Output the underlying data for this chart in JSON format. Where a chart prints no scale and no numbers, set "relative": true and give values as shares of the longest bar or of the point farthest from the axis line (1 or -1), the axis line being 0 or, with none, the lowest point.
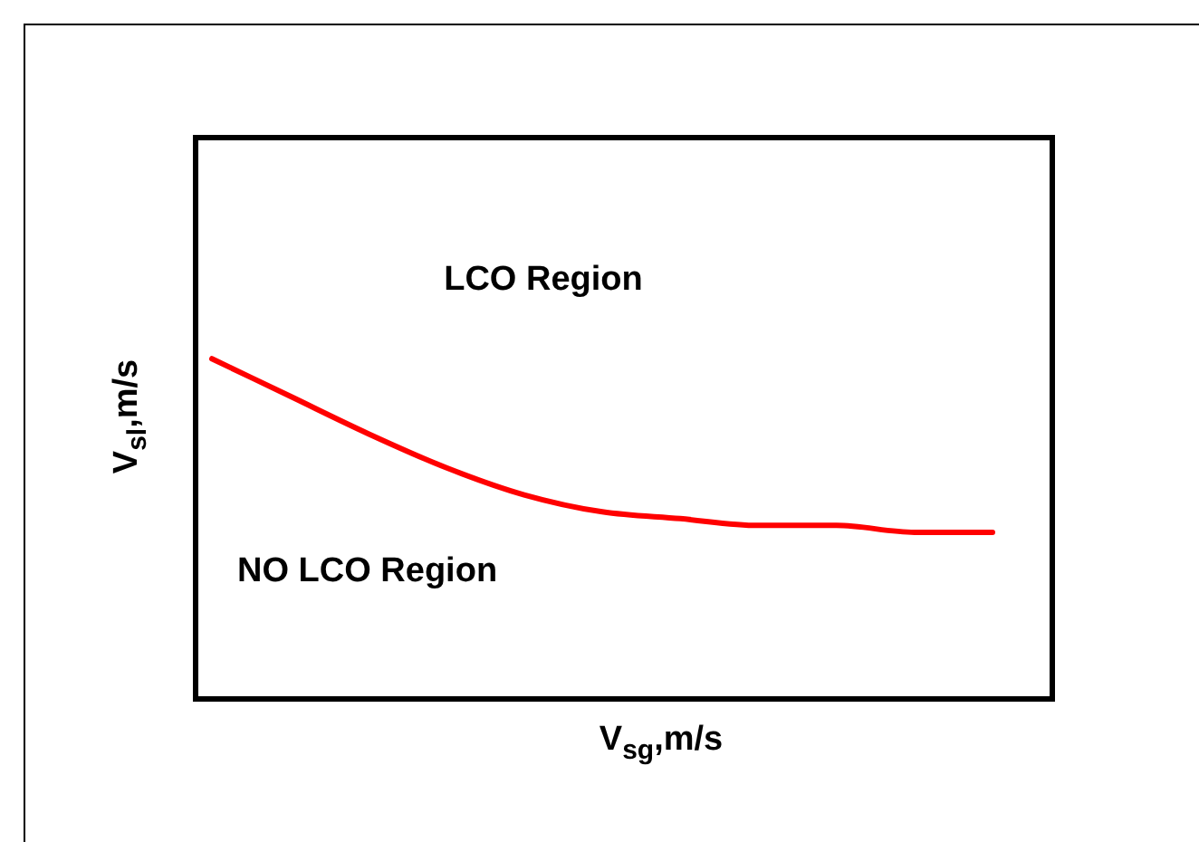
{
  "chart_data": {
    "type": "line",
    "relative": true,
    "xlabel": "V$_{sg}$,m/s",
    "ylabel": "V$_{sl}$,m/s",
    "categories": [
      null,
      null,
      null,
      null,
      null,
      null,
      null,
      null,
      null,
      null,
      null
    ],
    "values": [
      1.0,
      0.89,
      0.78,
      0.68,
      0.6,
      0.55,
      0.53,
      0.51,
      0.51,
      0.49,
      0.49
    ],
    "color": "#ff0000",
    "marker": "none",
    "annotations": [
      "LCO Region",
      "NO LCO Region"
    ]
  }
}
